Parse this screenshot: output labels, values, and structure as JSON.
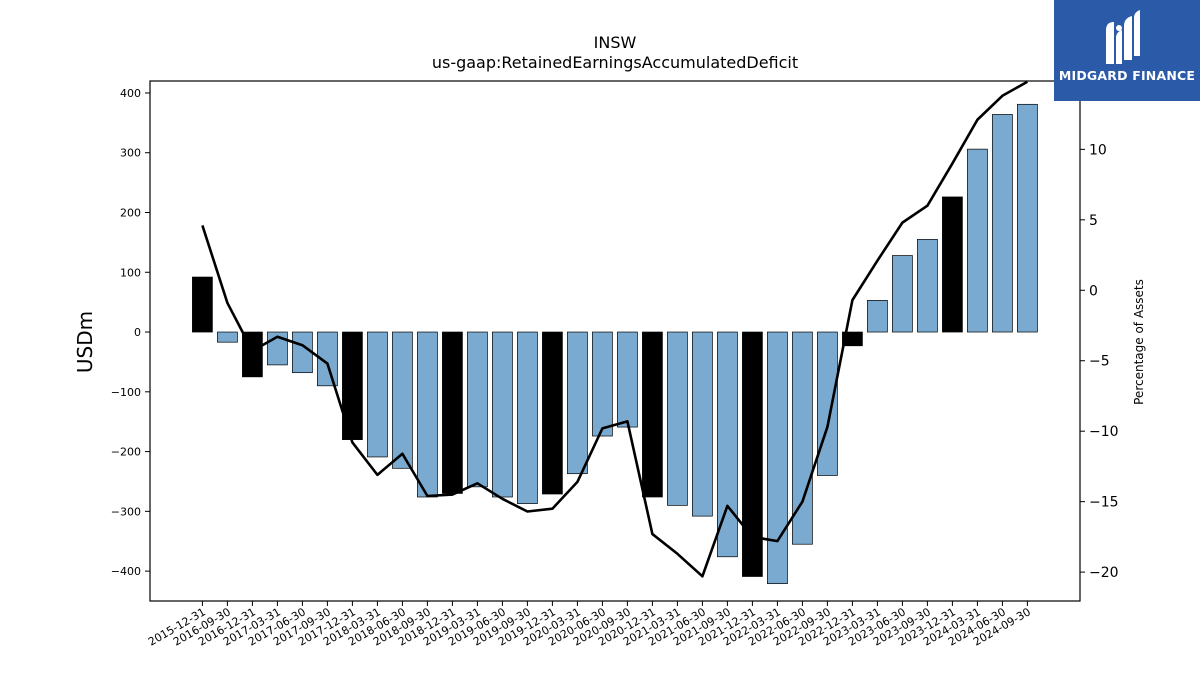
{
  "chart_data": {
    "type": "bar",
    "title": "INSW",
    "subtitle": "us-gaap:RetainedEarningsAccumulatedDeficit",
    "ylabel": "USDm",
    "y2label": "Percentage of Assets",
    "ylim": [
      -450,
      420
    ],
    "y2lim": [
      -22.05,
      14.85
    ],
    "yticks": [
      -400,
      -300,
      -200,
      -100,
      0,
      100,
      200,
      300,
      400
    ],
    "y2ticks": [
      -20,
      -15,
      -10,
      -5,
      0,
      5,
      10,
      15
    ],
    "categories": [
      "2015-12-31",
      "2016-09-30",
      "2016-12-31",
      "2017-03-31",
      "2017-06-30",
      "2017-09-30",
      "2017-12-31",
      "2018-03-31",
      "2018-06-30",
      "2018-09-30",
      "2018-12-31",
      "2019-03-31",
      "2019-06-30",
      "2019-09-30",
      "2019-12-31",
      "2020-03-31",
      "2020-06-30",
      "2020-09-30",
      "2020-12-31",
      "2021-03-31",
      "2021-06-30",
      "2021-09-30",
      "2021-12-31",
      "2022-03-31",
      "2022-06-30",
      "2022-09-30",
      "2022-12-31",
      "2023-03-31",
      "2023-06-30",
      "2023-09-30",
      "2023-12-31",
      "2024-03-31",
      "2024-06-30",
      "2024-09-30"
    ],
    "series": [
      {
        "kind": "bar",
        "values": [
          92,
          -17,
          -75,
          -55,
          -68,
          -90,
          -180,
          -209,
          -228,
          -276,
          -270,
          -259,
          -276,
          -287,
          -271,
          -237,
          -174,
          -159,
          -276,
          -290,
          -308,
          -376,
          -409,
          -421,
          -355,
          -240,
          -23,
          53,
          128,
          155,
          226,
          306,
          364,
          381
        ],
        "colors": [
          "#000000",
          "#7aaad0",
          "#000000",
          "#7aaad0",
          "#7aaad0",
          "#7aaad0",
          "#000000",
          "#7aaad0",
          "#7aaad0",
          "#7aaad0",
          "#000000",
          "#7aaad0",
          "#7aaad0",
          "#7aaad0",
          "#000000",
          "#7aaad0",
          "#7aaad0",
          "#7aaad0",
          "#000000",
          "#7aaad0",
          "#7aaad0",
          "#7aaad0",
          "#000000",
          "#7aaad0",
          "#7aaad0",
          "#7aaad0",
          "#000000",
          "#7aaad0",
          "#7aaad0",
          "#7aaad0",
          "#000000",
          "#7aaad0",
          "#7aaad0",
          "#7aaad0"
        ]
      },
      {
        "kind": "line",
        "axis": "right",
        "color": "#000000",
        "values": [
          4.6,
          -0.9,
          -4.3,
          -3.3,
          -3.9,
          -5.2,
          -10.8,
          -13.1,
          -11.6,
          -14.6,
          -14.5,
          -13.7,
          -14.8,
          -15.7,
          -15.5,
          -13.6,
          -9.8,
          -9.3,
          -17.3,
          -18.7,
          -20.3,
          -15.3,
          -17.5,
          -17.8,
          -15.0,
          -9.7,
          -0.7,
          2.1,
          4.8,
          6.0,
          9.0,
          12.1,
          13.8,
          14.8
        ]
      }
    ]
  },
  "logo": {
    "text": "MIDGARD FINANCE",
    "bg_color": "#2b5aa8"
  }
}
